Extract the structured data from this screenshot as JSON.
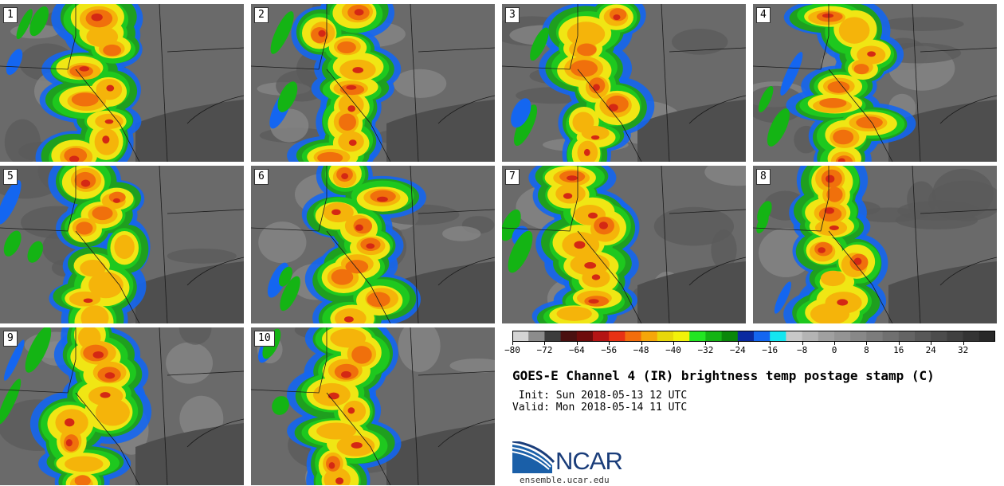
{
  "panels": [
    {
      "label": "1"
    },
    {
      "label": "2"
    },
    {
      "label": "3"
    },
    {
      "label": "4"
    },
    {
      "label": "5"
    },
    {
      "label": "6"
    },
    {
      "label": "7"
    },
    {
      "label": "8"
    },
    {
      "label": "9"
    },
    {
      "label": "10"
    }
  ],
  "colorbar": {
    "min": -80,
    "max": 40,
    "tick_labels": [
      "−80",
      "−72",
      "−64",
      "−56",
      "−48",
      "−40",
      "−32",
      "−24",
      "−16",
      "−8",
      "0",
      "8",
      "16",
      "24",
      "32"
    ],
    "tick_values": [
      -80,
      -72,
      -64,
      -56,
      -48,
      -40,
      -32,
      -24,
      -16,
      -8,
      0,
      8,
      16,
      24,
      32
    ],
    "colors": [
      "#d4d4d4",
      "#8c8c8c",
      "#3c3c3c",
      "#4a1010",
      "#6e0b0b",
      "#b41414",
      "#e83214",
      "#f26d0c",
      "#f5a60a",
      "#e8d80a",
      "#f2f20a",
      "#22e622",
      "#14b414",
      "#0a870a",
      "#0a2aa0",
      "#1466f0",
      "#14e6f0",
      "#c8c8c8",
      "#b4b4b4",
      "#a0a0a0",
      "#949494",
      "#888888",
      "#7c7c7c",
      "#707070",
      "#646464",
      "#585858",
      "#4c4c4c",
      "#404040",
      "#343434",
      "#282828"
    ]
  },
  "title": "GOES-E Channel 4 (IR) brightness temp postage stamp (C)",
  "init": " Init: Sun 2018-05-13 12 UTC",
  "valid": "Valid: Mon 2018-05-14 11 UTC",
  "logo_text": "NCAR",
  "url": "ensemble.ucar.edu"
}
